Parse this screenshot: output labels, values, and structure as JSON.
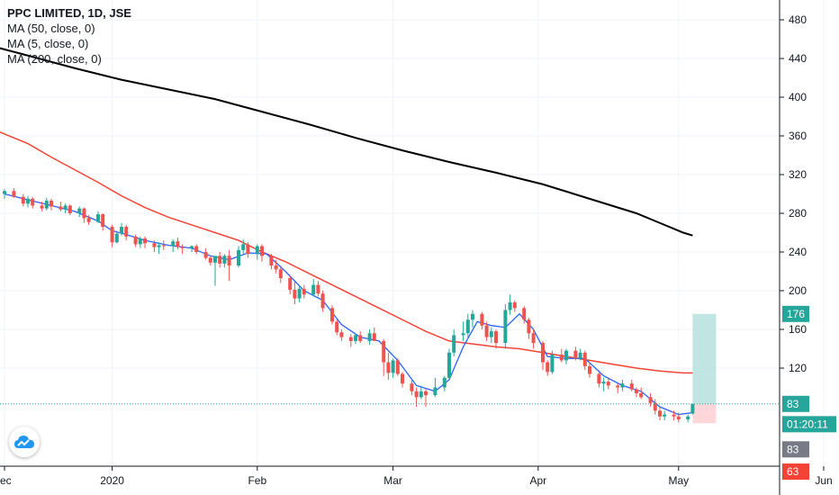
{
  "legend": {
    "title": "PPC LIMITED, 1D, JSE",
    "ma50": "MA (50, close, 0)",
    "ma5": "MA (5, close, 0)",
    "ma200": "MA (200, close, 0)"
  },
  "colors": {
    "up": "#26a69a",
    "down": "#ef5350",
    "ma5": "#2962ff",
    "ma50": "#f44336",
    "ma200": "#000000",
    "profit_zone": "#b2dfdb",
    "loss_zone": "#ffcdd2",
    "tag_green": "#26a69a",
    "tag_gray": "#787b86",
    "tag_red": "#f44336",
    "grid": "#f0f3fa"
  },
  "logo": {
    "icon": "tradingview-cloud-icon"
  },
  "chart_data": {
    "type": "candlestick",
    "title": "PPC LIMITED, 1D, JSE",
    "y_ticks": [
      120,
      160,
      200,
      240,
      280,
      320,
      360,
      400,
      440,
      480
    ],
    "ylim": [
      36,
      500
    ],
    "x_ticks": [
      "ec",
      "2020",
      "Feb",
      "Mar",
      "Apr",
      "May",
      "Jun"
    ],
    "x_tick_days": [
      0,
      23,
      54,
      83,
      114,
      144,
      175
    ],
    "candles": [
      [
        0,
        300,
        305,
        295,
        303
      ],
      [
        2,
        303,
        306,
        296,
        297
      ],
      [
        4,
        297,
        300,
        287,
        290
      ],
      [
        5,
        290,
        298,
        286,
        295
      ],
      [
        6,
        295,
        297,
        285,
        288
      ],
      [
        8,
        288,
        292,
        282,
        285
      ],
      [
        9,
        285,
        296,
        283,
        293
      ],
      [
        10,
        293,
        295,
        283,
        287
      ],
      [
        12,
        287,
        292,
        282,
        284
      ],
      [
        13,
        284,
        290,
        280,
        288
      ],
      [
        14,
        288,
        289,
        278,
        280
      ],
      [
        16,
        280,
        287,
        276,
        285
      ],
      [
        17,
        285,
        286,
        270,
        275
      ],
      [
        18,
        275,
        278,
        268,
        271
      ],
      [
        20,
        271,
        282,
        270,
        279
      ],
      [
        21,
        279,
        280,
        262,
        266
      ],
      [
        23,
        266,
        268,
        245,
        250
      ],
      [
        24,
        250,
        262,
        249,
        259
      ],
      [
        25,
        259,
        270,
        257,
        266
      ],
      [
        26,
        266,
        268,
        252,
        256
      ],
      [
        28,
        256,
        258,
        245,
        248
      ],
      [
        29,
        248,
        256,
        244,
        254
      ],
      [
        30,
        254,
        256,
        244,
        249
      ],
      [
        32,
        249,
        252,
        240,
        245
      ],
      [
        33,
        245,
        250,
        238,
        247
      ],
      [
        34,
        247,
        252,
        242,
        246
      ],
      [
        36,
        246,
        253,
        240,
        251
      ],
      [
        37,
        251,
        255,
        243,
        245
      ],
      [
        38,
        245,
        248,
        238,
        244
      ],
      [
        40,
        244,
        247,
        240,
        246
      ],
      [
        41,
        246,
        248,
        238,
        240
      ],
      [
        43,
        240,
        244,
        232,
        234
      ],
      [
        44,
        234,
        236,
        226,
        229
      ],
      [
        45,
        229,
        234,
        205,
        236
      ],
      [
        46,
        236,
        240,
        224,
        228
      ],
      [
        47,
        228,
        238,
        224,
        236
      ],
      [
        48,
        236,
        242,
        210,
        226
      ],
      [
        50,
        226,
        246,
        224,
        242
      ],
      [
        51,
        242,
        253,
        238,
        248
      ],
      [
        52,
        248,
        250,
        234,
        238
      ],
      [
        54,
        238,
        248,
        232,
        246
      ],
      [
        55,
        246,
        248,
        230,
        236
      ],
      [
        57,
        236,
        238,
        222,
        226
      ],
      [
        58,
        226,
        232,
        218,
        222
      ],
      [
        59,
        222,
        226,
        208,
        213
      ],
      [
        61,
        213,
        216,
        196,
        201
      ],
      [
        62,
        201,
        210,
        186,
        192
      ],
      [
        63,
        192,
        205,
        188,
        202
      ],
      [
        64,
        202,
        206,
        192,
        196
      ],
      [
        66,
        196,
        212,
        194,
        206
      ],
      [
        67,
        206,
        210,
        194,
        197
      ],
      [
        68,
        197,
        200,
        178,
        182
      ],
      [
        70,
        182,
        185,
        165,
        168
      ],
      [
        71,
        168,
        170,
        154,
        157
      ],
      [
        72,
        157,
        160,
        148,
        152
      ],
      [
        74,
        152,
        155,
        142,
        148
      ],
      [
        75,
        148,
        156,
        145,
        154
      ],
      [
        76,
        154,
        158,
        146,
        148
      ],
      [
        78,
        148,
        160,
        144,
        156
      ],
      [
        79,
        156,
        162,
        150,
        148
      ],
      [
        81,
        148,
        150,
        112,
        126
      ],
      [
        82,
        126,
        136,
        108,
        115
      ],
      [
        83,
        115,
        130,
        110,
        128
      ],
      [
        84,
        128,
        130,
        112,
        114
      ],
      [
        85,
        114,
        116,
        100,
        104
      ],
      [
        87,
        104,
        108,
        92,
        96
      ],
      [
        88,
        96,
        100,
        80,
        90
      ],
      [
        89,
        90,
        102,
        88,
        96
      ],
      [
        90,
        96,
        98,
        80,
        92
      ],
      [
        92,
        92,
        110,
        90,
        100
      ],
      [
        94,
        100,
        112,
        96,
        110
      ],
      [
        95,
        110,
        140,
        108,
        136
      ],
      [
        96,
        136,
        160,
        132,
        154
      ],
      [
        98,
        154,
        168,
        148,
        156
      ],
      [
        99,
        156,
        176,
        150,
        170
      ],
      [
        100,
        170,
        180,
        162,
        176
      ],
      [
        102,
        176,
        178,
        160,
        164
      ],
      [
        103,
        164,
        168,
        148,
        152
      ],
      [
        104,
        152,
        162,
        146,
        158
      ],
      [
        105,
        158,
        160,
        140,
        146
      ],
      [
        107,
        146,
        186,
        140,
        180
      ],
      [
        108,
        180,
        196,
        175,
        188
      ],
      [
        109,
        188,
        190,
        178,
        182
      ],
      [
        111,
        182,
        184,
        166,
        170
      ],
      [
        112,
        170,
        172,
        150,
        156
      ],
      [
        113,
        156,
        160,
        140,
        146
      ],
      [
        115,
        146,
        148,
        118,
        126
      ],
      [
        116,
        126,
        128,
        112,
        116
      ],
      [
        117,
        116,
        138,
        114,
        134
      ],
      [
        119,
        134,
        140,
        126,
        128
      ],
      [
        120,
        128,
        140,
        124,
        138
      ],
      [
        122,
        138,
        142,
        128,
        130
      ],
      [
        123,
        130,
        140,
        128,
        136
      ],
      [
        124,
        136,
        138,
        118,
        122
      ],
      [
        125,
        122,
        126,
        110,
        114
      ],
      [
        127,
        114,
        118,
        100,
        104
      ],
      [
        128,
        104,
        110,
        96,
        106
      ],
      [
        129,
        106,
        110,
        98,
        102
      ],
      [
        131,
        102,
        104,
        94,
        100
      ],
      [
        132,
        100,
        108,
        96,
        104
      ],
      [
        134,
        104,
        108,
        96,
        98
      ],
      [
        135,
        98,
        100,
        90,
        94
      ],
      [
        136,
        94,
        100,
        88,
        90
      ],
      [
        138,
        90,
        94,
        80,
        84
      ],
      [
        139,
        84,
        88,
        72,
        76
      ],
      [
        140,
        76,
        80,
        66,
        70
      ],
      [
        141,
        70,
        76,
        66,
        72
      ],
      [
        143,
        72,
        76,
        66,
        70
      ],
      [
        144,
        70,
        74,
        64,
        67
      ],
      [
        146,
        67,
        72,
        64,
        70
      ],
      [
        147,
        73,
        83,
        72,
        83
      ]
    ],
    "ma5": [
      [
        0,
        300
      ],
      [
        5,
        294
      ],
      [
        10,
        288
      ],
      [
        15,
        282
      ],
      [
        20,
        272
      ],
      [
        23,
        262
      ],
      [
        26,
        258
      ],
      [
        30,
        252
      ],
      [
        35,
        247
      ],
      [
        40,
        244
      ],
      [
        44,
        236
      ],
      [
        48,
        232
      ],
      [
        52,
        239
      ],
      [
        56,
        238
      ],
      [
        60,
        220
      ],
      [
        64,
        200
      ],
      [
        68,
        190
      ],
      [
        72,
        165
      ],
      [
        76,
        152
      ],
      [
        80,
        148
      ],
      [
        84,
        128
      ],
      [
        88,
        102
      ],
      [
        92,
        96
      ],
      [
        95,
        108
      ],
      [
        98,
        142
      ],
      [
        101,
        168
      ],
      [
        104,
        164
      ],
      [
        107,
        162
      ],
      [
        110,
        176
      ],
      [
        113,
        160
      ],
      [
        116,
        132
      ],
      [
        120,
        130
      ],
      [
        124,
        130
      ],
      [
        128,
        112
      ],
      [
        132,
        102
      ],
      [
        136,
        96
      ],
      [
        140,
        80
      ],
      [
        144,
        72
      ],
      [
        147,
        74
      ]
    ],
    "ma50": [
      [
        -2,
        366
      ],
      [
        5,
        352
      ],
      [
        10,
        338
      ],
      [
        15,
        325
      ],
      [
        20,
        312
      ],
      [
        25,
        298
      ],
      [
        30,
        286
      ],
      [
        35,
        276
      ],
      [
        40,
        268
      ],
      [
        45,
        260
      ],
      [
        50,
        252
      ],
      [
        55,
        240
      ],
      [
        60,
        230
      ],
      [
        65,
        218
      ],
      [
        70,
        206
      ],
      [
        75,
        194
      ],
      [
        80,
        182
      ],
      [
        85,
        170
      ],
      [
        90,
        158
      ],
      [
        95,
        148
      ],
      [
        100,
        145
      ],
      [
        105,
        142
      ],
      [
        110,
        140
      ],
      [
        115,
        136
      ],
      [
        120,
        132
      ],
      [
        125,
        128
      ],
      [
        130,
        124
      ],
      [
        135,
        120
      ],
      [
        140,
        117
      ],
      [
        145,
        115
      ],
      [
        147,
        115
      ]
    ],
    "ma200": [
      [
        -2,
        452
      ],
      [
        5,
        443
      ],
      [
        15,
        430
      ],
      [
        25,
        418
      ],
      [
        35,
        408
      ],
      [
        45,
        398
      ],
      [
        55,
        385
      ],
      [
        65,
        372
      ],
      [
        75,
        358
      ],
      [
        85,
        345
      ],
      [
        95,
        333
      ],
      [
        105,
        322
      ],
      [
        115,
        310
      ],
      [
        125,
        295
      ],
      [
        135,
        280
      ],
      [
        140,
        270
      ],
      [
        145,
        260
      ],
      [
        147,
        257
      ]
    ],
    "current_price": 83,
    "position": {
      "x_start": 147,
      "x_end": 152,
      "target": 176,
      "entry": 83,
      "stop": 63
    },
    "price_tags": [
      {
        "label": "176",
        "value": 176,
        "color_key": "tag_green"
      },
      {
        "label": "83",
        "value": 83,
        "color_key": "tag_green"
      },
      {
        "label": "01:20:11",
        "value": 62,
        "color_key": "tag_green"
      },
      {
        "label": "83",
        "value": 36,
        "color_key": "tag_gray"
      },
      {
        "label": "63",
        "value": 13,
        "color_key": "tag_red"
      }
    ]
  }
}
